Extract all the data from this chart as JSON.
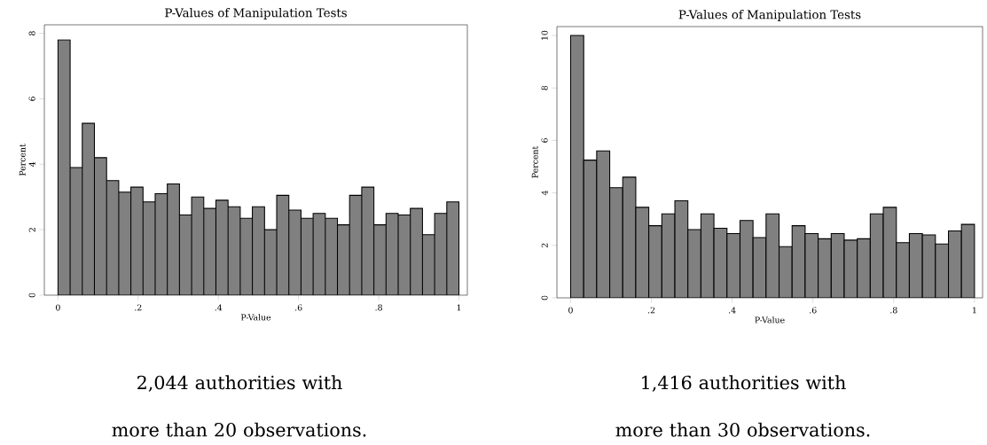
{
  "chart_data": [
    {
      "type": "histogram",
      "title": "P-Values of Manipulation Tests",
      "xlabel": "P-Value",
      "ylabel": "Percent",
      "color": "#808080",
      "bins": [
        0,
        0.0303,
        0.0606,
        0.0909,
        0.1212,
        0.1515,
        0.1818,
        0.2121,
        0.2424,
        0.2727,
        0.303,
        0.3333,
        0.3636,
        0.3939,
        0.4242,
        0.4545,
        0.4848,
        0.5152,
        0.5455,
        0.5758,
        0.6061,
        0.6364,
        0.6667,
        0.697,
        0.7273,
        0.7576,
        0.7879,
        0.8182,
        0.8485,
        0.8788,
        0.9091,
        0.9394,
        0.9697,
        1
      ],
      "values": [
        7.8,
        3.9,
        5.25,
        4.2,
        3.5,
        3.15,
        3.3,
        2.85,
        3.1,
        3.4,
        2.45,
        3.0,
        2.65,
        2.9,
        2.7,
        2.35,
        2.7,
        2.0,
        3.05,
        2.6,
        2.35,
        2.5,
        2.35,
        2.15,
        3.05,
        3.3,
        2.15,
        2.5,
        2.45,
        2.65,
        1.85,
        2.5,
        2.85
      ],
      "xlim": [
        -0.034,
        1.021
      ],
      "ylim": [
        0,
        8.26
      ],
      "xticks": [
        0,
        {
          "value": 0.2,
          "label": ".2"
        },
        {
          "value": 0.4,
          "label": ".4"
        },
        {
          "value": 0.6,
          "label": ".6"
        },
        {
          "value": 0.8,
          "label": ".8"
        },
        1
      ],
      "yticks": [
        0,
        2,
        4,
        6,
        8
      ],
      "annotations": [
        "2,044 authorities with more than 20 observations."
      ]
    },
    {
      "type": "histogram",
      "title": "P-Values of Manipulation Tests",
      "xlabel": "P-Value",
      "ylabel": "Percent",
      "color": "#808080",
      "bins": [
        0,
        0.0323,
        0.0645,
        0.0968,
        0.129,
        0.1613,
        0.1935,
        0.2258,
        0.2581,
        0.2903,
        0.3226,
        0.3548,
        0.3871,
        0.4194,
        0.4516,
        0.4839,
        0.5161,
        0.5484,
        0.5806,
        0.6129,
        0.6452,
        0.6774,
        0.7097,
        0.7419,
        0.7742,
        0.8065,
        0.8387,
        0.871,
        0.9032,
        0.9355,
        0.9677,
        1
      ],
      "values": [
        10.0,
        5.25,
        5.6,
        4.2,
        4.6,
        3.45,
        2.75,
        3.2,
        3.7,
        2.6,
        3.2,
        2.65,
        2.45,
        2.95,
        2.3,
        3.2,
        1.95,
        2.75,
        2.45,
        2.25,
        2.45,
        2.2,
        2.25,
        3.2,
        3.45,
        2.1,
        2.45,
        2.4,
        2.05,
        2.55,
        2.8
      ],
      "xlim": [
        -0.034,
        1.02
      ],
      "ylim": [
        0,
        10.34
      ],
      "xticks": [
        0,
        {
          "value": 0.2,
          "label": ".2"
        },
        {
          "value": 0.4,
          "label": ".4"
        },
        {
          "value": 0.6,
          "label": ".6"
        },
        {
          "value": 0.8,
          "label": ".8"
        },
        1
      ],
      "yticks": [
        0,
        2,
        4,
        6,
        8,
        10
      ],
      "annotations": [
        "1,416 authorities with more than 30 observations."
      ]
    }
  ]
}
